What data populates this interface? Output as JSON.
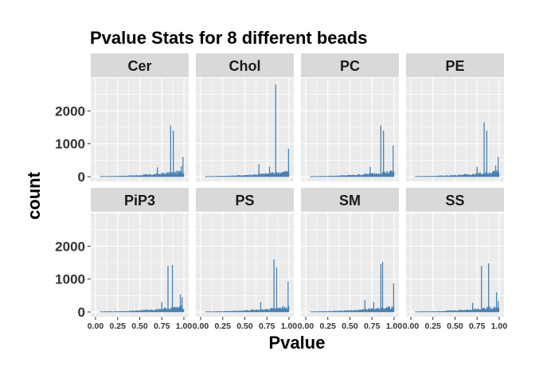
{
  "chart_data": {
    "type": "bar",
    "title": "Pvalue Stats for 8 different beads",
    "xlabel": "Pvalue",
    "ylabel": "count",
    "xlim": [
      0,
      1
    ],
    "ylim": [
      0,
      3000
    ],
    "x_ticks": [
      "0.00",
      "0.25",
      "0.50",
      "0.75",
      "1.00"
    ],
    "x_tick_values": [
      0,
      0.25,
      0.5,
      0.75,
      1.0
    ],
    "y_ticks": [
      "0",
      "1000",
      "2000"
    ],
    "y_tick_values": [
      0,
      1000,
      2000
    ],
    "bar_color": "#4682B4",
    "panel_bg": "#EBEBEB",
    "strip_bg": "#D9D9D9",
    "grid": true,
    "facets": [
      {
        "label": "Cer",
        "spikes": [
          [
            0.85,
            1550
          ],
          [
            0.88,
            1400
          ],
          [
            0.99,
            600
          ],
          [
            0.97,
            320
          ],
          [
            0.7,
            280
          ]
        ]
      },
      {
        "label": "Chol",
        "spikes": [
          [
            0.85,
            2800
          ],
          [
            0.995,
            850
          ],
          [
            0.66,
            380
          ],
          [
            0.78,
            300
          ]
        ]
      },
      {
        "label": "PC",
        "spikes": [
          [
            0.85,
            1550
          ],
          [
            0.88,
            1400
          ],
          [
            0.99,
            950
          ],
          [
            0.73,
            300
          ]
        ]
      },
      {
        "label": "PE",
        "spikes": [
          [
            0.83,
            1650
          ],
          [
            0.86,
            1400
          ],
          [
            0.99,
            600
          ],
          [
            0.96,
            340
          ],
          [
            0.75,
            300
          ]
        ]
      },
      {
        "label": "PiP3",
        "spikes": [
          [
            0.82,
            1400
          ],
          [
            0.87,
            1430
          ],
          [
            0.96,
            530
          ],
          [
            0.98,
            450
          ],
          [
            0.75,
            300
          ]
        ]
      },
      {
        "label": "PS",
        "spikes": [
          [
            0.83,
            1600
          ],
          [
            0.86,
            1350
          ],
          [
            0.99,
            930
          ],
          [
            0.68,
            300
          ]
        ]
      },
      {
        "label": "SM",
        "spikes": [
          [
            0.85,
            1450
          ],
          [
            0.87,
            1520
          ],
          [
            0.995,
            870
          ],
          [
            0.67,
            360
          ],
          [
            0.77,
            300
          ]
        ]
      },
      {
        "label": "SS",
        "spikes": [
          [
            0.8,
            1400
          ],
          [
            0.88,
            1480
          ],
          [
            0.97,
            600
          ],
          [
            0.99,
            330
          ],
          [
            0.7,
            280
          ]
        ]
      }
    ]
  }
}
